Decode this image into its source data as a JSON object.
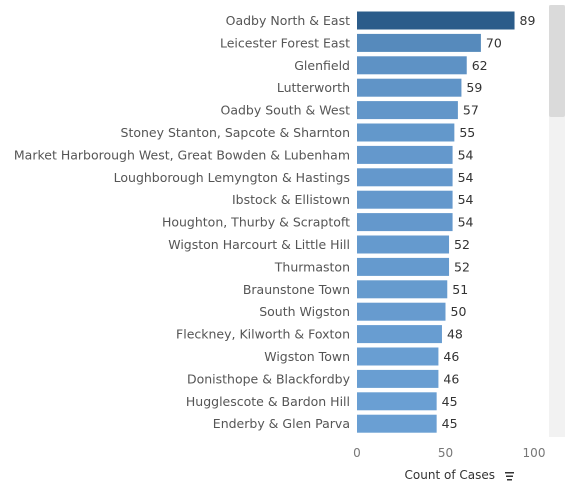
{
  "chart_data": {
    "type": "bar",
    "orientation": "horizontal",
    "categories": [
      "Oadby North & East",
      "Leicester Forest East",
      "Glenfield",
      "Lutterworth",
      "Oadby South & West",
      "Stoney Stanton, Sapcote & Sharnton",
      "Market Harborough West, Great Bowden & Lubenham",
      "Loughborough Lemyngton & Hastings",
      "Ibstock & Ellistown",
      "Houghton, Thurby & Scraptoft",
      "Wigston Harcourt & Little Hill",
      "Thurmaston",
      "Braunstone Town",
      "South Wigston",
      "Fleckney, Kilworth & Foxton",
      "Wigston Town",
      "Donisthope & Blackfordby",
      "Hugglescote & Bardon Hill",
      "Enderby & Glen Parva"
    ],
    "values": [
      89,
      70,
      62,
      59,
      57,
      55,
      54,
      54,
      54,
      54,
      52,
      52,
      51,
      50,
      48,
      46,
      46,
      45,
      45
    ],
    "xlabel": "Count of Cases",
    "xlim": [
      0,
      100
    ],
    "xticks": [
      0,
      50,
      100
    ],
    "grid": false,
    "colors": {
      "max_bar": "#2b5c8a",
      "min_bar": "#6a9fd3",
      "scrollbar_track": "#f2f2f2",
      "scrollbar_thumb": "#dadada"
    }
  },
  "controls": {
    "sort_icon": "sort-descending-icon"
  }
}
